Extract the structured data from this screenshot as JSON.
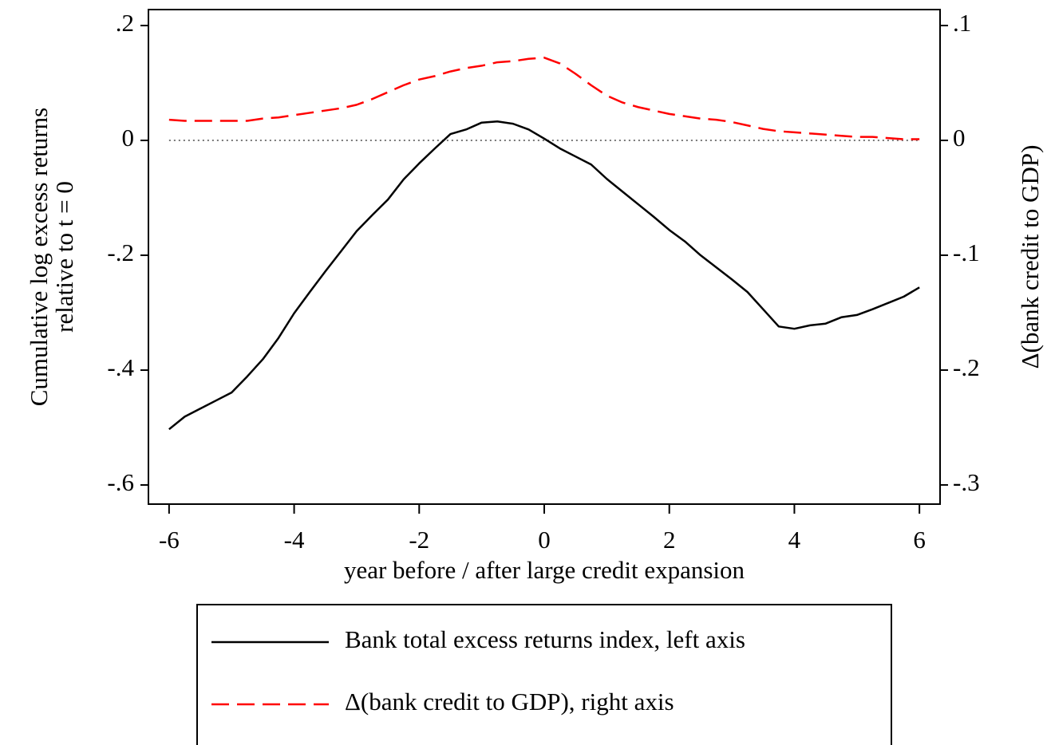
{
  "chart_data": {
    "type": "line",
    "x_label": "year before / after large credit expansion",
    "y_label": [
      "Cumulative log excess returns",
      "relative to t = 0"
    ],
    "y2_label": "Δ(bank credit to GDP)",
    "x": [
      -6,
      -5.75,
      -5.5,
      -5.25,
      -5,
      -4.75,
      -4.5,
      -4.25,
      -4,
      -3.75,
      -3.5,
      -3.25,
      -3,
      -2.75,
      -2.5,
      -2.25,
      -2,
      -1.75,
      -1.5,
      -1.25,
      -1,
      -0.75,
      -0.5,
      -0.25,
      0,
      0.25,
      0.5,
      0.75,
      1,
      1.25,
      1.5,
      1.75,
      2,
      2.25,
      2.5,
      2.75,
      3,
      3.25,
      3.5,
      3.75,
      4,
      4.25,
      4.5,
      4.75,
      5,
      5.25,
      5.5,
      5.75,
      6
    ],
    "series": [
      {
        "name": "Bank total excess returns index, left axis",
        "color": "#000000",
        "dash": "solid",
        "values": [
          -0.503,
          -0.481,
          -0.467,
          -0.453,
          -0.439,
          -0.411,
          -0.381,
          -0.344,
          -0.301,
          -0.264,
          -0.228,
          -0.193,
          -0.158,
          -0.13,
          -0.103,
          -0.068,
          -0.04,
          -0.014,
          0.011,
          0.019,
          0.031,
          0.033,
          0.029,
          0.019,
          0.003,
          -0.014,
          -0.028,
          -0.042,
          -0.067,
          -0.089,
          -0.111,
          -0.133,
          -0.156,
          -0.176,
          -0.2,
          -0.221,
          -0.242,
          -0.264,
          -0.294,
          -0.324,
          -0.328,
          -0.322,
          -0.319,
          -0.308,
          -0.304,
          -0.294,
          -0.283,
          -0.272,
          -0.256
        ]
      },
      {
        "name": "Δ(bank credit to GDP), right axis",
        "color": "#ff0000",
        "dash": "dashed",
        "axis": "y2",
        "values": [
          0.018,
          0.017,
          0.017,
          0.017,
          0.017,
          0.017,
          0.019,
          0.02,
          0.022,
          0.024,
          0.026,
          0.028,
          0.031,
          0.036,
          0.042,
          0.048,
          0.053,
          0.056,
          0.06,
          0.063,
          0.065,
          0.068,
          0.069,
          0.071,
          0.072,
          0.067,
          0.058,
          0.048,
          0.039,
          0.033,
          0.029,
          0.026,
          0.023,
          0.021,
          0.019,
          0.018,
          0.016,
          0.013,
          0.01,
          0.008,
          0.007,
          0.006,
          0.005,
          0.004,
          0.003,
          0.003,
          0.002,
          0.001,
          0.001
        ]
      }
    ],
    "reference_line": 0,
    "xlim": [
      -6.33,
      6.33
    ],
    "xticks": [
      -6,
      -4,
      -2,
      0,
      2,
      4,
      6
    ],
    "ylim": [
      -0.6333,
      0.2278
    ],
    "yticks": [
      {
        "value": 0.2,
        "label": ".2"
      },
      0,
      {
        "value": -0.2,
        "label": "-.2"
      },
      {
        "value": -0.4,
        "label": "-.4"
      },
      {
        "value": -0.6,
        "label": "-.6"
      }
    ],
    "y2lim": [
      -0.3167,
      0.1139
    ],
    "y2ticks": [
      {
        "value": 0.1,
        "label": ".1"
      },
      0,
      {
        "value": -0.1,
        "label": "-.1"
      },
      {
        "value": -0.2,
        "label": "-.2"
      },
      {
        "value": -0.3,
        "label": "-.3"
      }
    ],
    "legend": "bottom"
  }
}
